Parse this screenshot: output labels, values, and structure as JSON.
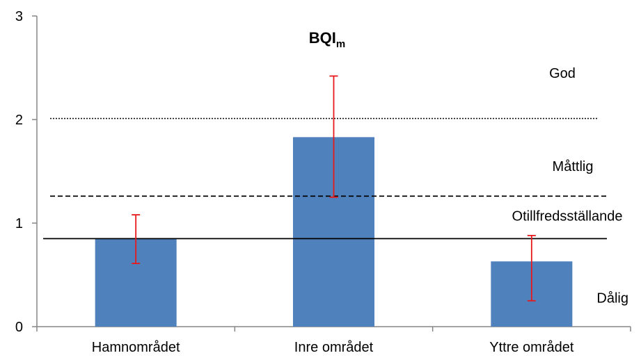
{
  "chart_data": {
    "type": "bar",
    "title": "BQI",
    "title_subscript": "m",
    "categories": [
      "Hamnområdet",
      "Inre området",
      "Yttre området"
    ],
    "values": [
      0.85,
      1.83,
      0.63
    ],
    "error_low": [
      0.61,
      1.25,
      0.25
    ],
    "error_high": [
      1.08,
      2.42,
      0.88
    ],
    "ylim": [
      0,
      3
    ],
    "yticks": [
      "0",
      "1",
      "2",
      "3"
    ],
    "grid": false,
    "bar_color": "#4f81bd",
    "error_color": "#e8191c",
    "thresholds": [
      {
        "value": 2.01,
        "style": "dotted"
      },
      {
        "value": 1.26,
        "style": "dashed"
      },
      {
        "value": 0.85,
        "style": "solid"
      }
    ],
    "zone_labels": [
      {
        "text": "God",
        "value": 2.45
      },
      {
        "text": "Måttlig",
        "value": 1.55
      },
      {
        "text": "Otillfredsställande",
        "value": 1.07
      },
      {
        "text": "Dålig",
        "value": 0.28
      }
    ]
  }
}
